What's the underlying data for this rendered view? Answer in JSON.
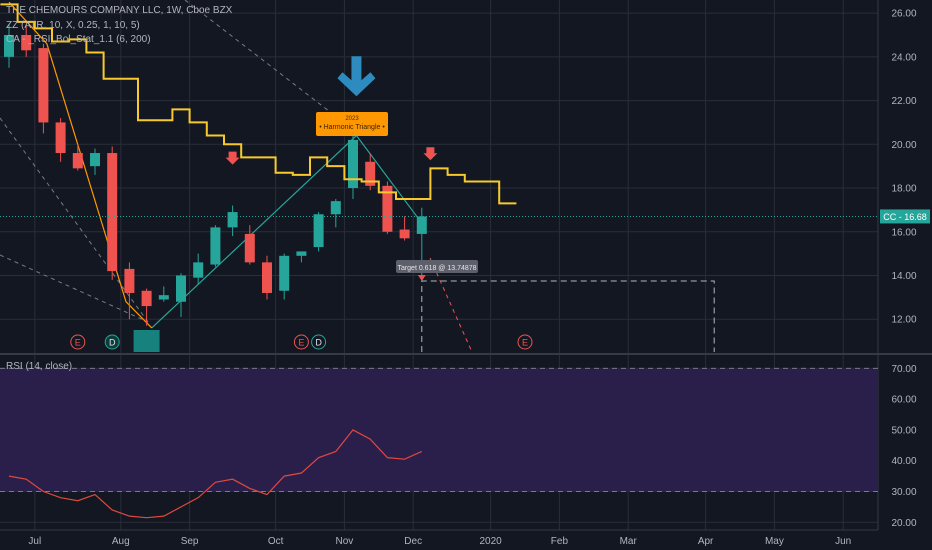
{
  "legend": {
    "symbol": "THE CHEMOURS COMPANY LLC, 1W, Cboe BZX",
    "zz": "ZZ (ATR, 10, X, 0.25, 1, 10, 5)",
    "ca": "CA - _RSI_Bol_Stat_1.1 (6, 200)",
    "rsi": "RSI (14, close)"
  },
  "price_tag": {
    "symbol": "CC",
    "value": "16.68"
  },
  "target_label": "Target 0.618 @ 13.74878",
  "harmonic_label": "• Harmonic Triangle •",
  "harmonic_sub": "2023",
  "events": [
    {
      "letter": "E",
      "kind": "earnings",
      "date_index": 4
    },
    {
      "letter": "D",
      "kind": "dividend",
      "date_index": 6
    },
    {
      "letter": "E",
      "kind": "earnings",
      "date_index": 17
    },
    {
      "letter": "D",
      "kind": "dividend",
      "date_index": 18
    },
    {
      "letter": "E",
      "kind": "earnings",
      "date_index": 30
    }
  ],
  "colors": {
    "background": "#131722",
    "up": "#26a69a",
    "down": "#ef5350",
    "zigzag": "#f7c92c",
    "pattern": "#26a69a",
    "rsi_line": "#e0493f",
    "rsi_band": "#2a1e4a",
    "tag_bg": "#26a69a",
    "harmonic_bg": "#ff9800",
    "arrow_blue": "#2e8bc0"
  },
  "chart_data": {
    "type": "candlestick",
    "title": "THE CHEMOURS COMPANY LLC, 1W, Cboe BZX",
    "y_ticks": [
      "12.00",
      "14.00",
      "16.00",
      "18.00",
      "20.00",
      "22.00",
      "24.00",
      "26.00"
    ],
    "ylim": [
      10.5,
      26.6
    ],
    "x_ticks": [
      "Jul",
      "Aug",
      "Sep",
      "Oct",
      "Nov",
      "Dec",
      "2020",
      "Feb",
      "Mar",
      "Apr",
      "May",
      "Jun"
    ],
    "x_tick_week_index": [
      1.5,
      6.5,
      10.5,
      15.5,
      19.5,
      23.5,
      28,
      32,
      36,
      40.5,
      44.5,
      48.5
    ],
    "candles": [
      {
        "o": 24.0,
        "h": 25.5,
        "l": 23.5,
        "c": 25.0
      },
      {
        "o": 25.0,
        "h": 25.4,
        "l": 24.0,
        "c": 24.3
      },
      {
        "o": 24.4,
        "h": 24.6,
        "l": 20.5,
        "c": 21.0
      },
      {
        "o": 21.0,
        "h": 21.2,
        "l": 19.2,
        "c": 19.6
      },
      {
        "o": 19.6,
        "h": 20.0,
        "l": 18.8,
        "c": 18.9
      },
      {
        "o": 19.0,
        "h": 19.8,
        "l": 18.6,
        "c": 19.6
      },
      {
        "o": 19.6,
        "h": 19.9,
        "l": 13.8,
        "c": 14.2
      },
      {
        "o": 14.3,
        "h": 14.6,
        "l": 12.0,
        "c": 13.2
      },
      {
        "o": 13.3,
        "h": 13.4,
        "l": 11.7,
        "c": 12.6
      },
      {
        "o": 12.9,
        "h": 13.5,
        "l": 12.8,
        "c": 13.1
      },
      {
        "o": 12.8,
        "h": 14.1,
        "l": 12.1,
        "c": 14.0
      },
      {
        "o": 13.9,
        "h": 15.0,
        "l": 13.6,
        "c": 14.6
      },
      {
        "o": 14.5,
        "h": 16.3,
        "l": 14.4,
        "c": 16.2
      },
      {
        "o": 16.2,
        "h": 17.2,
        "l": 15.8,
        "c": 16.9
      },
      {
        "o": 15.9,
        "h": 16.3,
        "l": 14.5,
        "c": 14.6
      },
      {
        "o": 14.6,
        "h": 14.9,
        "l": 12.9,
        "c": 13.2
      },
      {
        "o": 13.3,
        "h": 15.0,
        "l": 12.9,
        "c": 14.9
      },
      {
        "o": 14.9,
        "h": 15.1,
        "l": 14.6,
        "c": 15.1
      },
      {
        "o": 15.3,
        "h": 16.9,
        "l": 15.1,
        "c": 16.8
      },
      {
        "o": 16.8,
        "h": 17.5,
        "l": 16.2,
        "c": 17.4
      },
      {
        "o": 18.0,
        "h": 20.4,
        "l": 17.5,
        "c": 20.2
      },
      {
        "o": 19.2,
        "h": 19.6,
        "l": 17.9,
        "c": 18.1
      },
      {
        "o": 18.1,
        "h": 18.3,
        "l": 15.9,
        "c": 16.0
      },
      {
        "o": 16.1,
        "h": 16.7,
        "l": 15.6,
        "c": 15.7
      },
      {
        "o": 15.9,
        "h": 17.1,
        "l": 13.9,
        "c": 16.7
      }
    ],
    "zigzag_steps": [
      26.4,
      25.6,
      25.3,
      24.7,
      24.8,
      24.2,
      23.0,
      23.0,
      21.1,
      21.1,
      21.6,
      21.0,
      20.4,
      20.0,
      19.4,
      19.4,
      18.7,
      18.6,
      19.4,
      19.0,
      18.4,
      18.3,
      17.8,
      17.5,
      17.5,
      18.9,
      18.6,
      18.3,
      18.3,
      17.3
    ],
    "zigzag_line": [
      [
        0,
        26.5
      ],
      [
        2.2,
        24.6
      ],
      [
        6.8,
        12.8
      ],
      [
        8.3,
        11.6
      ]
    ],
    "pattern_line": [
      [
        8.3,
        11.6
      ],
      [
        20.2,
        20.4
      ],
      [
        23.9,
        16.5
      ]
    ],
    "target": {
      "week": 24,
      "price": 13.74878
    },
    "target_box": {
      "from_week": 24,
      "to_week": 41,
      "top": 13.75
    },
    "markers": [
      {
        "type": "arrow-down",
        "week": 13,
        "price": 19.3,
        "color": "#ef5350"
      },
      {
        "type": "arrow-down",
        "week": 24.5,
        "price": 19.5,
        "color": "#ef5350"
      },
      {
        "type": "big-arrow-down",
        "week": 20.2,
        "price": 22.2,
        "color": "#2e8bc0"
      }
    ],
    "rsi": {
      "ylim": [
        17.5,
        74
      ],
      "y_ticks": [
        "20.00",
        "30.00",
        "40.00",
        "50.00",
        "60.00",
        "70.00"
      ],
      "band": [
        30,
        70
      ],
      "values": [
        35,
        34,
        30,
        28,
        27,
        29,
        24,
        22,
        21.5,
        22,
        25,
        28,
        33,
        34,
        31,
        29,
        35,
        36,
        41,
        43,
        50,
        47,
        41,
        40.5,
        43
      ]
    }
  }
}
